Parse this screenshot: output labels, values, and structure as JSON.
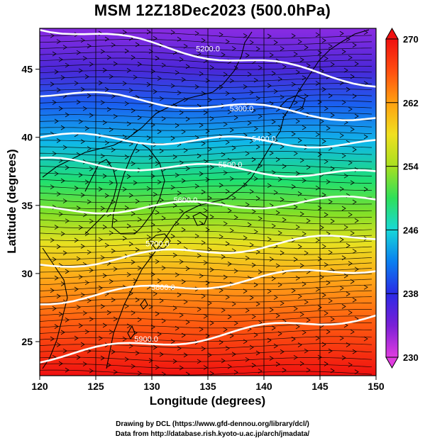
{
  "title": "MSM 12Z18Dec2023 (500.0hPa)",
  "x_axis": {
    "label": "Longitude (degrees)",
    "range": [
      120,
      150
    ],
    "ticks": [
      120,
      125,
      130,
      135,
      140,
      145,
      150
    ]
  },
  "y_axis": {
    "label": "Latitude  (degrees)",
    "range": [
      22.5,
      48
    ],
    "ticks": [
      25,
      30,
      35,
      40,
      45
    ]
  },
  "colorbar": {
    "min": 230,
    "max": 270,
    "ticks": [
      230,
      238,
      246,
      254,
      262,
      270
    ],
    "colormap": [
      "#e03ce0",
      "#7a1fd6",
      "#2a2ae6",
      "#0a7ff0",
      "#18d8d8",
      "#2ee05a",
      "#a8e020",
      "#f0e020",
      "#ffa010",
      "#ff4e10",
      "#f01010"
    ]
  },
  "contours": [
    {
      "label": "5200.0"
    },
    {
      "label": "5300.0"
    },
    {
      "label": "5400.0"
    },
    {
      "label": "5500.0"
    },
    {
      "label": "5600.0"
    },
    {
      "label": "5700.0"
    },
    {
      "label": "5800.0"
    },
    {
      "label": "5900.0"
    }
  ],
  "credits": {
    "line1": "Drawing by DCL (https://www.gfd-dennou.org/library/dcl/)",
    "line2": "Data from http://database.rish.kyoto-u.ac.jp/arch/jmadata/"
  }
}
